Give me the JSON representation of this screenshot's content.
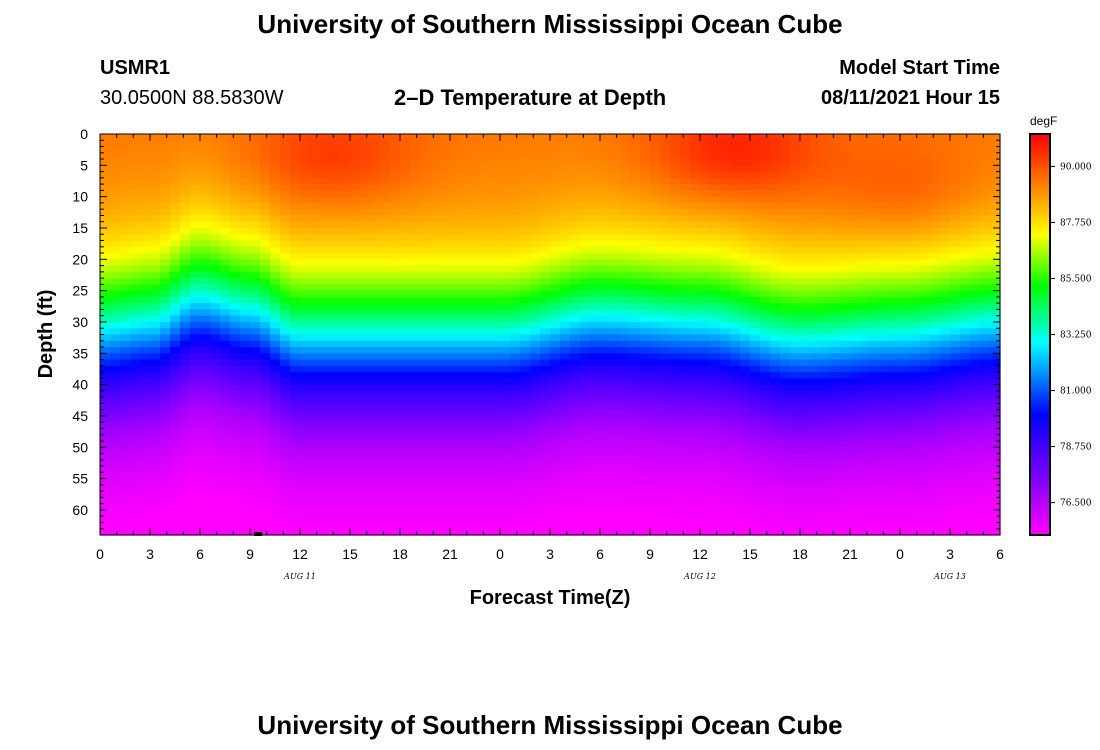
{
  "header": {
    "title_top": "University of Southern Mississippi Ocean Cube",
    "station": "USMR1",
    "location": "30.0500N  88.5830W",
    "subtitle": "2–D Temperature at Depth",
    "model_start_label": "Model Start Time",
    "model_start_value": "08/11/2021 Hour 15"
  },
  "footer": {
    "title_bottom": "University of Southern Mississippi Ocean Cube"
  },
  "chart_data": {
    "type": "heatmap",
    "title": "2–D Temperature at Depth",
    "xlabel": "Forecast Time(Z)",
    "ylabel": "Depth (ft)",
    "x_tick_labels": [
      "0",
      "3",
      "6",
      "9",
      "12",
      "15",
      "18",
      "21",
      "0",
      "3",
      "6",
      "9",
      "12",
      "15",
      "18",
      "21",
      "0",
      "3",
      "6"
    ],
    "x_range_hours": [
      0,
      54
    ],
    "date_labels": [
      {
        "text": "AUG  11",
        "hour": 12
      },
      {
        "text": "AUG  12",
        "hour": 36
      },
      {
        "text": "AUG  13",
        "hour": 51
      }
    ],
    "y_tick_labels": [
      "0",
      "5",
      "10",
      "15",
      "20",
      "25",
      "30",
      "35",
      "40",
      "45",
      "50",
      "55",
      "60"
    ],
    "y_range_ft": [
      0,
      64
    ],
    "colorbar": {
      "unit": "degF",
      "tick_labels": [
        "90.000",
        "87.750",
        "85.500",
        "83.250",
        "81.000",
        "78.750",
        "76.500"
      ],
      "tick_values": [
        90.0,
        87.75,
        85.5,
        83.25,
        81.0,
        78.75,
        76.5
      ],
      "range": [
        75.2,
        91.3
      ]
    },
    "surface_temp_degF_approx": 89.5,
    "bottom_temp_degF_approx": 75.5,
    "thermocline_depth_ft_by_hour": [
      {
        "hour": 0,
        "depth": 32
      },
      {
        "hour": 3,
        "depth": 31
      },
      {
        "hour": 6,
        "depth": 27
      },
      {
        "hour": 9,
        "depth": 29
      },
      {
        "hour": 12,
        "depth": 33
      },
      {
        "hour": 18,
        "depth": 33
      },
      {
        "hour": 24,
        "depth": 33
      },
      {
        "hour": 30,
        "depth": 30
      },
      {
        "hour": 36,
        "depth": 31
      },
      {
        "hour": 42,
        "depth": 34
      },
      {
        "hour": 48,
        "depth": 33
      },
      {
        "hour": 54,
        "depth": 31
      }
    ],
    "surface_hotspots": [
      {
        "hour": 14,
        "depth": 4,
        "temp_degF": 90.6
      },
      {
        "hour": 38,
        "depth": 3,
        "temp_degF": 91.0
      },
      {
        "hour": 48,
        "depth": 9,
        "temp_degF": 90.2
      }
    ],
    "colors": {
      "palette": [
        "#ff00ff",
        "#8000ff",
        "#0000ff",
        "#00ffff",
        "#00ff00",
        "#ffff00",
        "#ff8c00",
        "#ff0000"
      ]
    }
  }
}
